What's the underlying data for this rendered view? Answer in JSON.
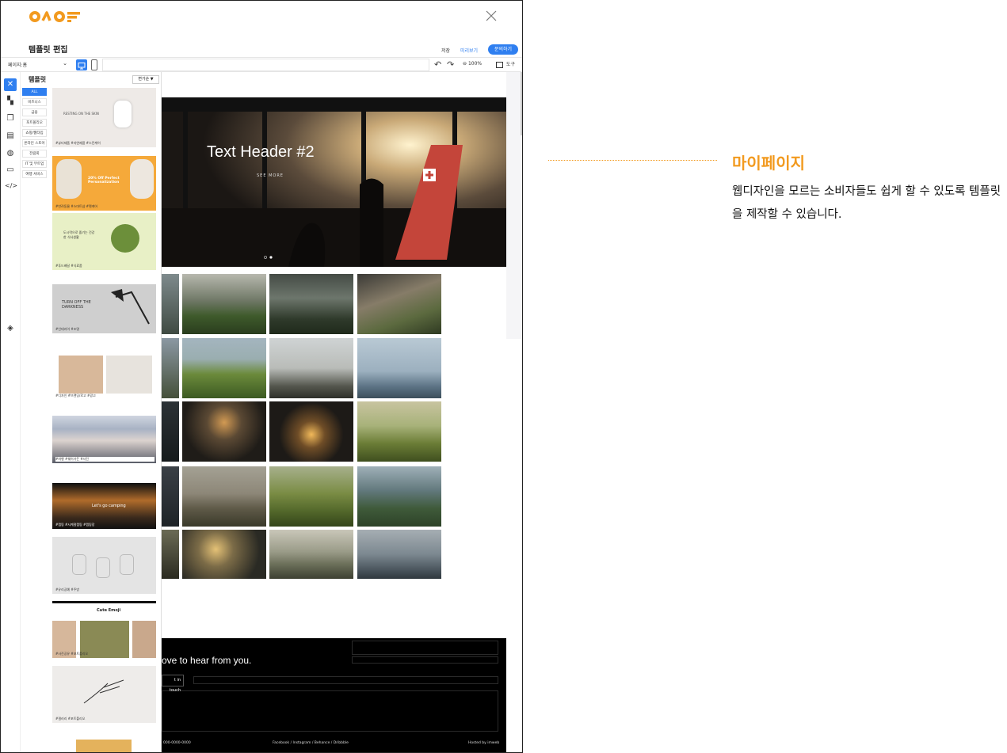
{
  "app": {
    "logo_text": "ONOF"
  },
  "header": {
    "title": "템플릿 편집",
    "save_label": "저장",
    "preview_label": "미리보기",
    "inquiry_label": "문의하기"
  },
  "toolbar": {
    "page_select_value": "페이지:홈",
    "zoom_level": "100%",
    "tools_label": "도구",
    "url_value": ""
  },
  "panel": {
    "title": "템플릿",
    "sort_label": "변가순 ▼",
    "categories": [
      "ALL",
      "비즈니스",
      "금융",
      "포트폴리오",
      "쇼핑/웹타입",
      "온라인 스토어",
      "전람회",
      "IT 및 부트업",
      "여행 서비스"
    ],
    "thumbnails": [
      {
        "headline": "RESTING ON THE SKIN",
        "tags": "#뷰티제품 #자연제품 #스킨케어"
      },
      {
        "headline": "20% Off Perfect Personalization",
        "tags": "#반려동물 #스마트샵 #펫케어"
      },
      {
        "headline": "도시락으로 즐기는 건강한 식사생활",
        "tags": "#푸드배달 #식료품"
      },
      {
        "headline": "TURN OFF THE DARKNESS",
        "tags": "#인테리어 #조명"
      },
      {
        "headline": "",
        "tags": "#디자인 #브랜딩/로고 #광고"
      },
      {
        "headline": "",
        "tags": "#여행 #쉐어가든 #사진"
      },
      {
        "headline": "Let's go camping",
        "tags": "#캠핑 #사계절캠핑 #캠핑장"
      },
      {
        "headline": "",
        "tags": "#유리공예 #주방"
      },
      {
        "headline": "Cute Emoji",
        "tags": "#사진공유 #포트폴리오"
      },
      {
        "headline": "",
        "tags": "#갤러리 #포트폴리오"
      },
      {
        "headline": "",
        "tags": ""
      }
    ]
  },
  "canvas": {
    "hero_title": "Text Header #2",
    "hero_cta": "SEE MORE",
    "footer_heading": "ove to hear from you.",
    "footer_button": "t in touch",
    "footer_phone": "000-0000-0000",
    "footer_social": "Facebook  /  Instagram  /  Behance  /  Dribbble",
    "footer_hosted": "Hosted by imweb"
  },
  "annotation": {
    "title": "마이페이지",
    "description": "웹디자인을 모르는 소비자들도 쉽게 할 수 있도록 템플릿을 제작할 수 있습니다."
  },
  "colors": {
    "accent": "#2f7ff0",
    "brand_orange": "#f29a1f"
  }
}
